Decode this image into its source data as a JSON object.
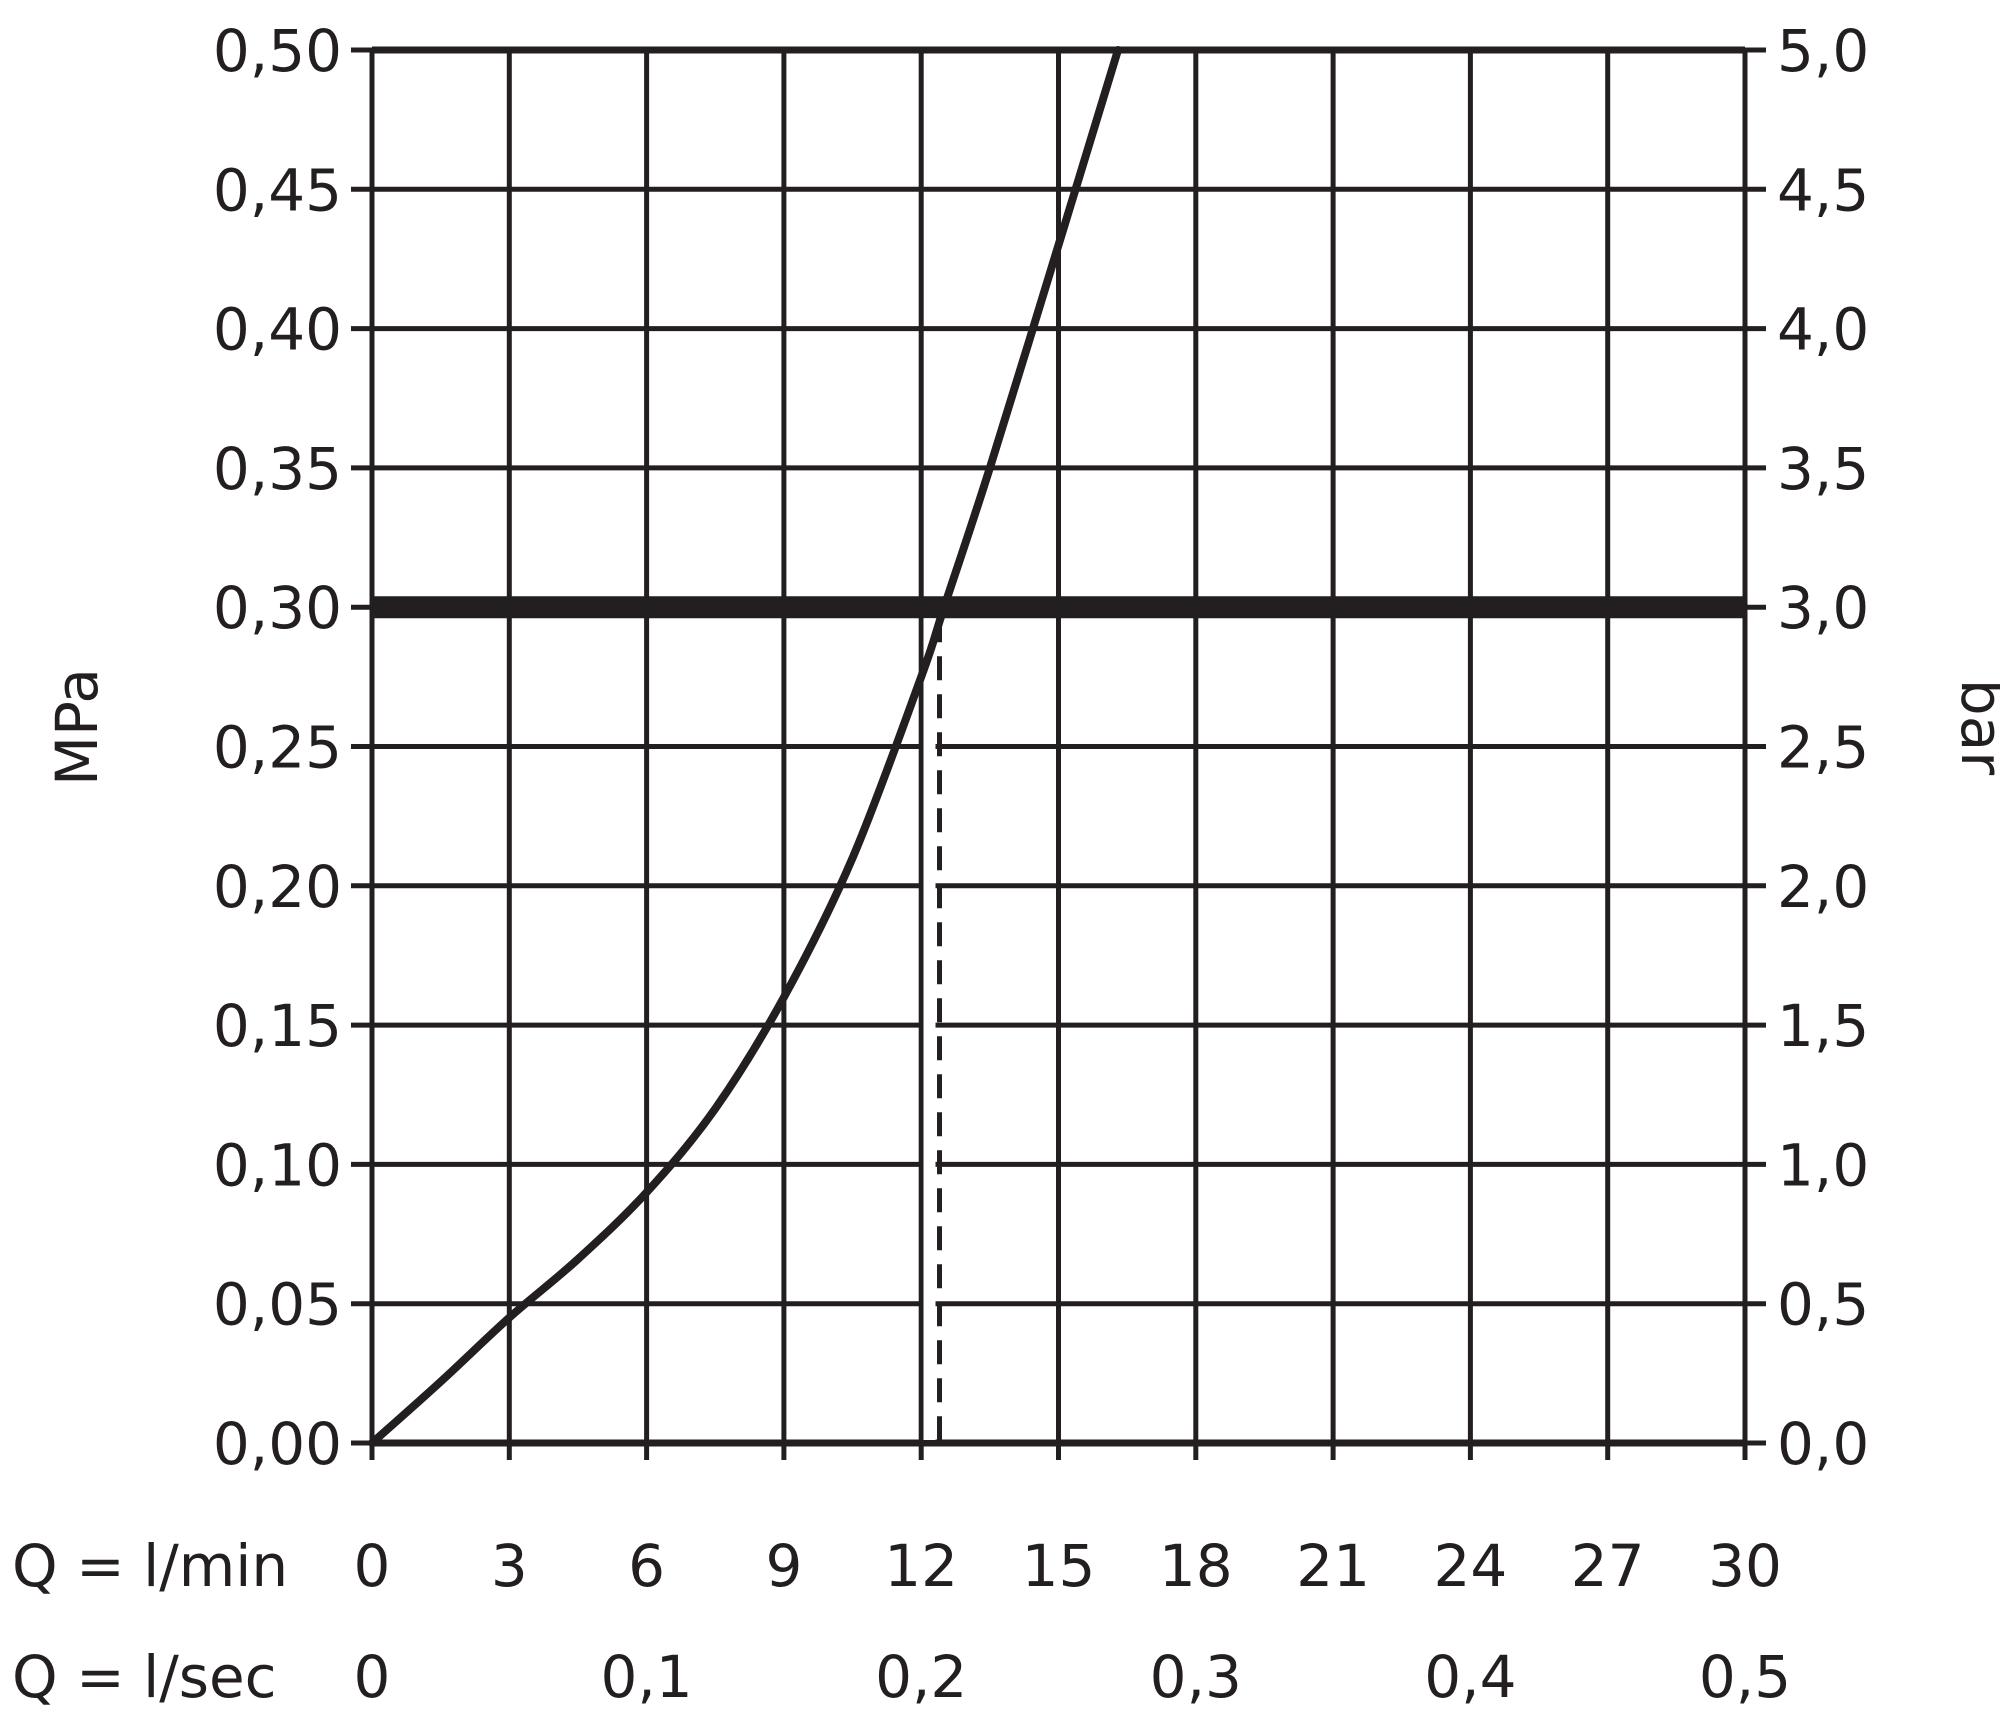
{
  "chart_data": {
    "type": "line",
    "title": "",
    "xlabel_primary": "Q = l/min",
    "xlabel_secondary": "Q = l/sec",
    "ylabel_left": "MPa",
    "ylabel_right": "bar",
    "xlim": [
      0,
      30
    ],
    "ylim": [
      0,
      0.5
    ],
    "grid": true,
    "x_ticks": [
      "0",
      "3",
      "6",
      "9",
      "12",
      "15",
      "18",
      "21",
      "24",
      "27",
      "30"
    ],
    "x_secondary_ticks": [
      "0",
      "0,1",
      "0,2",
      "0,3",
      "0,4",
      "0,5"
    ],
    "y_left_ticks": [
      "0,00",
      "0,05",
      "0,10",
      "0,15",
      "0,20",
      "0,25",
      "0,30",
      "0,35",
      "0,40",
      "0,45",
      "0,50"
    ],
    "y_right_ticks": [
      "0,0",
      "0,5",
      "1,0",
      "1,5",
      "2,0",
      "2,5",
      "3,0",
      "3,5",
      "4,0",
      "4,5",
      "5,0"
    ],
    "series": [
      {
        "x": [
          0,
          1.5,
          3,
          4.5,
          6,
          7.5,
          9,
          10.5,
          12,
          12.5,
          13.5,
          15,
          16.3
        ],
        "y": [
          0,
          0.022,
          0.045,
          0.066,
          0.09,
          0.12,
          0.16,
          0.21,
          0.275,
          0.3,
          0.35,
          0.43,
          0.5
        ]
      }
    ],
    "reference_line": {
      "y": 0.3
    },
    "marker_line": {
      "x": 12.4,
      "y_from": 0,
      "y_to": 0.3
    },
    "colors": {
      "line": "#231f20",
      "grid": "#231f20",
      "background": "#ffffff"
    }
  }
}
